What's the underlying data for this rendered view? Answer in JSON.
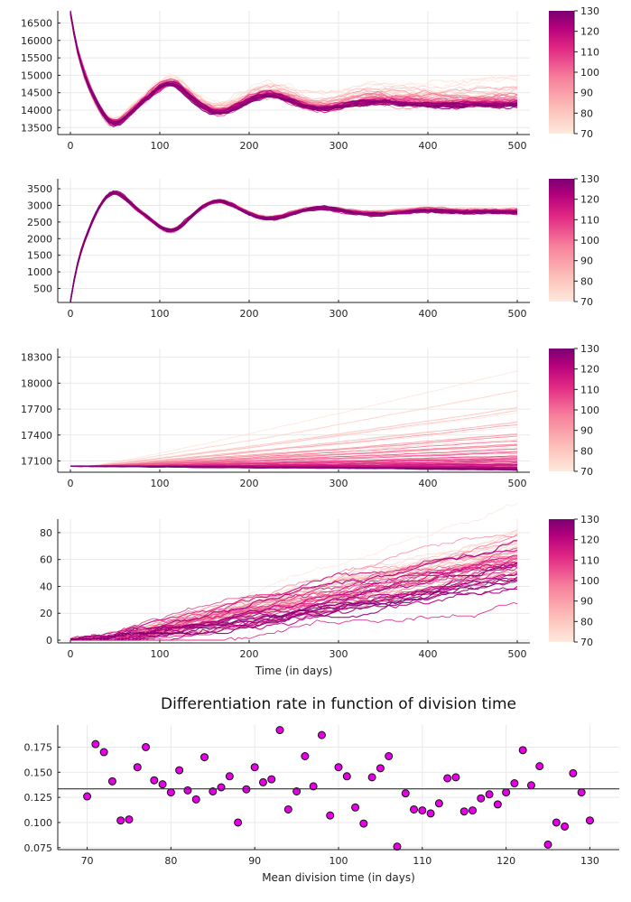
{
  "chart_data": [
    {
      "type": "line",
      "panel": "1",
      "x_range": [
        0,
        500
      ],
      "xticks": [
        "0",
        "100",
        "200",
        "300",
        "400",
        "500"
      ],
      "yticks": [
        "13500",
        "14000",
        "14500",
        "15000",
        "15500",
        "16000",
        "16500"
      ],
      "ylim": [
        13300,
        16850
      ],
      "grid": true,
      "n_runs": 61,
      "color_param_range": [
        70,
        130
      ],
      "trajectory": {
        "start": 16800,
        "equilibrium": 14150,
        "first_min": 13500,
        "first_min_day": 45,
        "period_days": 112,
        "spread_at_end_low_param": 1100
      },
      "colorbar": {
        "ticks": [
          "70",
          "80",
          "90",
          "100",
          "110",
          "120",
          "130"
        ],
        "colors": [
          "#ffe8dc",
          "#f45fa0",
          "#7e0071"
        ]
      }
    },
    {
      "type": "line",
      "panel": "2",
      "x_range": [
        0,
        500
      ],
      "xticks": [
        "0",
        "100",
        "200",
        "300",
        "400",
        "500"
      ],
      "yticks": [
        "500",
        "1000",
        "1500",
        "2000",
        "2500",
        "3000",
        "3500"
      ],
      "ylim": [
        80,
        3800
      ],
      "grid": true,
      "n_runs": 61,
      "color_param_range": [
        70,
        130
      ],
      "trajectory": {
        "start": 100,
        "equilibrium": 2800,
        "first_max": 3500,
        "first_max_day": 45,
        "period_days": 112
      },
      "colorbar": {
        "ticks": [
          "70",
          "80",
          "90",
          "100",
          "110",
          "120",
          "130"
        ],
        "colors": [
          "#ffe8dc",
          "#f45fa0",
          "#7e0071"
        ]
      }
    },
    {
      "type": "line",
      "panel": "3",
      "x_range": [
        0,
        500
      ],
      "xticks": [
        "0",
        "100",
        "200",
        "300",
        "400",
        "500"
      ],
      "yticks": [
        "17100",
        "17400",
        "17700",
        "18000",
        "18300"
      ],
      "ylim": [
        16970,
        18400
      ],
      "grid": true,
      "n_runs": 61,
      "color_param_range": [
        70,
        130
      ],
      "trajectory": {
        "start": 17040,
        "final_min": 17000,
        "final_max": 18350
      },
      "colorbar": {
        "ticks": [
          "70",
          "80",
          "90",
          "100",
          "110",
          "120",
          "130"
        ],
        "colors": [
          "#ffe8dc",
          "#f45fa0",
          "#7e0071"
        ]
      }
    },
    {
      "type": "line",
      "panel": "4",
      "x_range": [
        0,
        500
      ],
      "xticks": [
        "0",
        "100",
        "200",
        "300",
        "400",
        "500"
      ],
      "yticks": [
        "0",
        "20",
        "40",
        "60",
        "80"
      ],
      "ylim": [
        -2,
        90
      ],
      "grid": true,
      "xlabel": "Time (in days)",
      "n_runs": 61,
      "color_param_range": [
        70,
        130
      ],
      "trajectory": {
        "start": 0,
        "final_min": 38,
        "final_max": 88
      },
      "colorbar": {
        "ticks": [
          "70",
          "80",
          "90",
          "100",
          "110",
          "120",
          "130"
        ],
        "colors": [
          "#ffe8dc",
          "#f45fa0",
          "#7e0071"
        ]
      }
    },
    {
      "type": "scatter",
      "panel": "5",
      "title": "Differentiation rate in function of division time",
      "xlabel": "Mean division time (in days)",
      "xticks": [
        "70",
        "80",
        "90",
        "100",
        "110",
        "120",
        "130"
      ],
      "yticks": [
        "0.075",
        "0.100",
        "0.125",
        "0.150",
        "0.175"
      ],
      "xlim": [
        68,
        132
      ],
      "ylim": [
        0.073,
        0.197
      ],
      "grid": true,
      "mean_line": 0.1335,
      "marker_color": "#e600e6",
      "x": [
        70,
        71,
        72,
        73,
        74,
        75,
        76,
        77,
        78,
        79,
        80,
        81,
        82,
        83,
        84,
        85,
        86,
        87,
        88,
        89,
        90,
        91,
        92,
        93,
        94,
        95,
        96,
        97,
        98,
        99,
        100,
        101,
        102,
        103,
        104,
        105,
        106,
        107,
        108,
        109,
        110,
        111,
        112,
        113,
        114,
        115,
        116,
        117,
        118,
        119,
        120,
        121,
        122,
        123,
        124,
        125,
        126,
        127,
        128,
        129,
        130
      ],
      "y": [
        0.126,
        0.178,
        0.17,
        0.141,
        0.102,
        0.103,
        0.155,
        0.175,
        0.142,
        0.138,
        0.13,
        0.152,
        0.132,
        0.123,
        0.165,
        0.131,
        0.135,
        0.146,
        0.1,
        0.133,
        0.155,
        0.14,
        0.143,
        0.192,
        0.113,
        0.131,
        0.166,
        0.136,
        0.187,
        0.107,
        0.155,
        0.146,
        0.115,
        0.099,
        0.145,
        0.154,
        0.166,
        0.076,
        0.129,
        0.113,
        0.112,
        0.109,
        0.119,
        0.144,
        0.145,
        0.111,
        0.112,
        0.124,
        0.128,
        0.118,
        0.13,
        0.139,
        0.172,
        0.137,
        0.156,
        0.078,
        0.1,
        0.096,
        0.149,
        0.13,
        0.102
      ]
    }
  ]
}
